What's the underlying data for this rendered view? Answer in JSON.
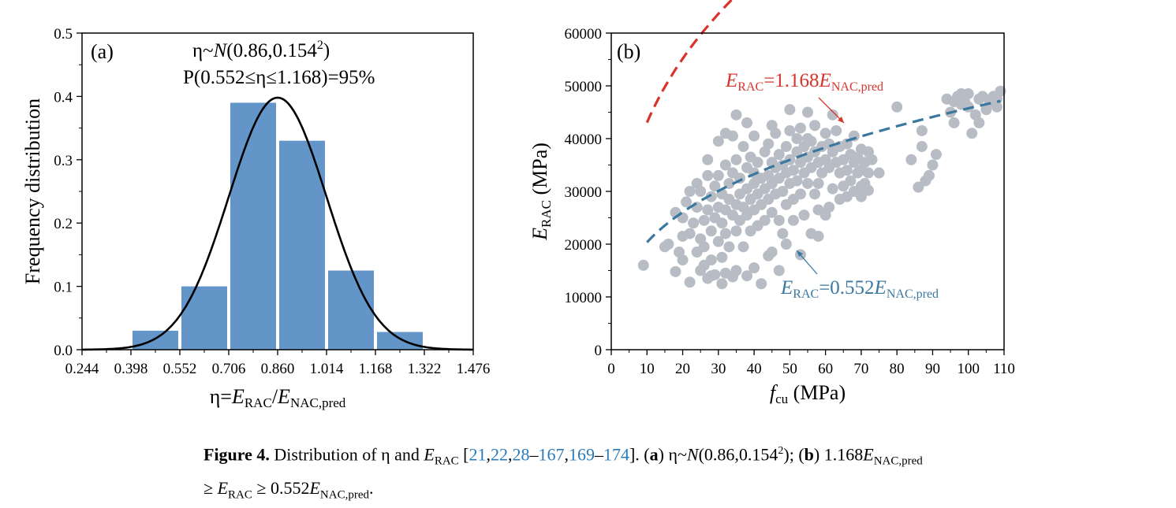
{
  "chart_data": [
    {
      "type": "bar",
      "panel_label": "(a)",
      "xlabel": {
        "base": "η=",
        "e1": "E",
        "s1": "RAC",
        "slash": "/",
        "e2": "E",
        "s2": "NAC,pred"
      },
      "ylabel": "Frequency distribution",
      "xlim": [
        0.244,
        1.476
      ],
      "ylim": [
        0,
        0.5
      ],
      "x_ticks": [
        "0.244",
        "0.398",
        "0.552",
        "0.706",
        "0.860",
        "1.014",
        "1.168",
        "1.322",
        "1.476"
      ],
      "y_ticks": [
        "0.0",
        "0.1",
        "0.2",
        "0.3",
        "0.4",
        "0.5"
      ],
      "bin_edges": [
        0.398,
        0.552,
        0.706,
        0.86,
        1.014,
        1.168,
        1.322
      ],
      "values": [
        0.03,
        0.1,
        0.39,
        0.33,
        0.125,
        0.028
      ],
      "normal_curve": {
        "mean": 0.86,
        "sd": 0.154
      },
      "annotation1": {
        "a": "η~",
        "b": "N",
        "c": "(0.86,0.154",
        "d": "2",
        "e": ")"
      },
      "annotation2": "P(0.552≤η≤1.168)=95%",
      "bar_color": "#6495c8",
      "curve_color": "#000000"
    },
    {
      "type": "scatter",
      "panel_label": "(b)",
      "xlabel": {
        "v": "f",
        "s": "cu",
        "u": " (MPa)"
      },
      "ylabel": {
        "v": "E",
        "s": "RAC",
        "u": " (MPa)"
      },
      "xlim": [
        0,
        110
      ],
      "ylim": [
        0,
        60000
      ],
      "x_ticks": [
        "0",
        "10",
        "20",
        "30",
        "40",
        "50",
        "60",
        "70",
        "80",
        "90",
        "100",
        "110"
      ],
      "y_ticks": [
        "0",
        "10000",
        "20000",
        "30000",
        "40000",
        "50000",
        "60000"
      ],
      "upper_curve": {
        "factor": 1.168,
        "x_range": [
          10,
          109
        ],
        "color": "#d9342b"
      },
      "lower_curve": {
        "factor": 0.552,
        "x_range": [
          10,
          109
        ],
        "color": "#3a78a0"
      },
      "upper_label": {
        "v": "E",
        "s": "RAC",
        "m": "=1.168",
        "v2": "E",
        "s2": "NAC,pred"
      },
      "lower_label": {
        "v": "E",
        "s": "RAC",
        "m": "=0.552",
        "v2": "E",
        "s2": "NAC,pred"
      },
      "point_color": "#b8bcc4",
      "points": [
        [
          9,
          16000
        ],
        [
          15,
          19500
        ],
        [
          16,
          20000
        ],
        [
          18,
          14800
        ],
        [
          18,
          26000
        ],
        [
          20,
          25000
        ],
        [
          20,
          17000
        ],
        [
          21,
          28000
        ],
        [
          22,
          22000
        ],
        [
          22,
          12800
        ],
        [
          23,
          24000
        ],
        [
          24,
          18500
        ],
        [
          24,
          27000
        ],
        [
          25,
          21000
        ],
        [
          25,
          15000
        ],
        [
          25,
          30000
        ],
        [
          26,
          24500
        ],
        [
          26,
          19500
        ],
        [
          27,
          26500
        ],
        [
          27,
          13500
        ],
        [
          27,
          36000
        ],
        [
          28,
          22500
        ],
        [
          28,
          29000
        ],
        [
          28,
          17000
        ],
        [
          29,
          25000
        ],
        [
          29,
          31000
        ],
        [
          29,
          14200
        ],
        [
          30,
          27000
        ],
        [
          30,
          20500
        ],
        [
          30,
          33000
        ],
        [
          31,
          24000
        ],
        [
          31,
          29500
        ],
        [
          31,
          17500
        ],
        [
          32,
          26500
        ],
        [
          32,
          35000
        ],
        [
          32,
          22000
        ],
        [
          32,
          14500
        ],
        [
          33,
          28500
        ],
        [
          33,
          31500
        ],
        [
          33,
          19500
        ],
        [
          34,
          25500
        ],
        [
          34,
          33500
        ],
        [
          34,
          40500
        ],
        [
          35,
          27500
        ],
        [
          35,
          22500
        ],
        [
          35,
          36000
        ],
        [
          35,
          15000
        ],
        [
          36,
          29500
        ],
        [
          36,
          24500
        ],
        [
          36,
          32500
        ],
        [
          37,
          27000
        ],
        [
          37,
          38500
        ],
        [
          37,
          19500
        ],
        [
          38,
          30500
        ],
        [
          38,
          25500
        ],
        [
          38,
          34500
        ],
        [
          38,
          14000
        ],
        [
          39,
          28500
        ],
        [
          39,
          22500
        ],
        [
          39,
          36500
        ],
        [
          40,
          31500
        ],
        [
          40,
          26500
        ],
        [
          40,
          33500
        ],
        [
          40,
          40500
        ],
        [
          41,
          29500
        ],
        [
          41,
          23500
        ],
        [
          41,
          35500
        ],
        [
          42,
          32500
        ],
        [
          42,
          27500
        ],
        [
          42,
          12500
        ],
        [
          43,
          30500
        ],
        [
          43,
          37500
        ],
        [
          43,
          24500
        ],
        [
          44,
          33000
        ],
        [
          44,
          28500
        ],
        [
          44,
          39000
        ],
        [
          45,
          31500
        ],
        [
          45,
          26000
        ],
        [
          45,
          35500
        ],
        [
          45,
          18500
        ],
        [
          46,
          34500
        ],
        [
          46,
          29500
        ],
        [
          46,
          41000
        ],
        [
          47,
          32500
        ],
        [
          47,
          24500
        ],
        [
          47,
          37000
        ],
        [
          48,
          35000
        ],
        [
          48,
          30000
        ],
        [
          48,
          22000
        ],
        [
          49,
          33500
        ],
        [
          49,
          38500
        ],
        [
          49,
          27500
        ],
        [
          50,
          36000
        ],
        [
          50,
          31500
        ],
        [
          50,
          41500
        ],
        [
          50,
          45500
        ],
        [
          51,
          34000
        ],
        [
          51,
          28500
        ],
        [
          51,
          24500
        ],
        [
          52,
          37500
        ],
        [
          52,
          32000
        ],
        [
          52,
          40000
        ],
        [
          53,
          35500
        ],
        [
          53,
          29500
        ],
        [
          53,
          42000
        ],
        [
          54,
          38500
        ],
        [
          54,
          33500
        ],
        [
          54,
          25500
        ],
        [
          55,
          36500
        ],
        [
          55,
          31500
        ],
        [
          55,
          40000
        ],
        [
          56,
          34500
        ],
        [
          56,
          39500
        ],
        [
          57,
          37500
        ],
        [
          57,
          29500
        ],
        [
          57,
          42500
        ],
        [
          58,
          35500
        ],
        [
          58,
          31500
        ],
        [
          58,
          21500
        ],
        [
          59,
          38500
        ],
        [
          59,
          33500
        ],
        [
          60,
          36000
        ],
        [
          60,
          41000
        ],
        [
          60,
          25500
        ],
        [
          61,
          34500
        ],
        [
          61,
          39000
        ],
        [
          62,
          37500
        ],
        [
          62,
          30500
        ],
        [
          63,
          35500
        ],
        [
          63,
          41500
        ],
        [
          64,
          33500
        ],
        [
          64,
          38500
        ],
        [
          65,
          36000
        ],
        [
          65,
          31000
        ],
        [
          66,
          39000
        ],
        [
          66,
          34000
        ],
        [
          67,
          37000
        ],
        [
          67,
          32000
        ],
        [
          68,
          35500
        ],
        [
          68,
          40500
        ],
        [
          69,
          33500
        ],
        [
          69,
          36500
        ],
        [
          70,
          34000
        ],
        [
          70,
          38000
        ],
        [
          70,
          29000
        ],
        [
          71,
          35500
        ],
        [
          71,
          31500
        ],
        [
          72,
          37500
        ],
        [
          72,
          33500
        ],
        [
          75,
          33500
        ],
        [
          80,
          46000
        ],
        [
          84,
          36000
        ],
        [
          86,
          30800
        ],
        [
          87,
          38500
        ],
        [
          87,
          41500
        ],
        [
          88,
          32000
        ],
        [
          89,
          33000
        ],
        [
          90,
          35000
        ],
        [
          91,
          37000
        ],
        [
          95,
          45000
        ],
        [
          96,
          43000
        ],
        [
          97,
          48000
        ],
        [
          98,
          46500
        ],
        [
          99,
          47000
        ],
        [
          100,
          48500
        ],
        [
          101,
          41000
        ],
        [
          102,
          44500
        ],
        [
          103,
          47500
        ],
        [
          104,
          48000
        ],
        [
          105,
          45500
        ],
        [
          106,
          47000
        ],
        [
          107,
          48000
        ],
        [
          108,
          46000
        ],
        [
          109,
          49000
        ],
        [
          98,
          48500
        ],
        [
          100,
          46000
        ],
        [
          103,
          43000
        ],
        [
          96,
          47000
        ],
        [
          94,
          47500
        ],
        [
          108,
          47500
        ],
        [
          30,
          39500
        ],
        [
          32,
          41000
        ],
        [
          27,
          33000
        ],
        [
          24,
          31500
        ],
        [
          22,
          30000
        ],
        [
          35,
          44500
        ],
        [
          38,
          43000
        ],
        [
          45,
          42500
        ],
        [
          55,
          45000
        ],
        [
          62,
          44500
        ],
        [
          20,
          21500
        ],
        [
          19,
          18500
        ],
        [
          26,
          16000
        ],
        [
          28,
          14000
        ],
        [
          31,
          12500
        ],
        [
          34,
          13800
        ],
        [
          40,
          15500
        ],
        [
          44,
          17800
        ],
        [
          47,
          15000
        ],
        [
          49,
          20000
        ],
        [
          53,
          18000
        ],
        [
          56,
          22000
        ],
        [
          58,
          26500
        ],
        [
          61,
          27000
        ],
        [
          64,
          28500
        ],
        [
          66,
          29000
        ],
        [
          68,
          30000
        ],
        [
          70,
          31000
        ],
        [
          72,
          30200
        ],
        [
          73,
          36000
        ]
      ]
    }
  ],
  "caption": {
    "fig": "Figure 4.",
    "t1": " Distribution of η and ",
    "e1": "E",
    "s1": "RAC",
    "t2": " [",
    "r1": "21",
    "c1": ",",
    "r2": "22",
    "c2": ",",
    "r3": "28",
    "d1": "–",
    "r4": "167",
    "c3": ",",
    "r5": "169",
    "d2": "–",
    "r6": "174",
    "t3": "]. (",
    "a": "a",
    "t4": ") η~",
    "n": "N",
    "t5": "(0.86,0.154",
    "sup": "2",
    "t6": "); (",
    "b": "b",
    "t7": ") 1.168",
    "e2": "E",
    "s2": "NAC,pred",
    "t8": "≥ ",
    "e3": "E",
    "s3": "RAC",
    "t9": " ≥ 0.552",
    "e4": "E",
    "s4": "NAC,pred",
    "t10": "."
  }
}
